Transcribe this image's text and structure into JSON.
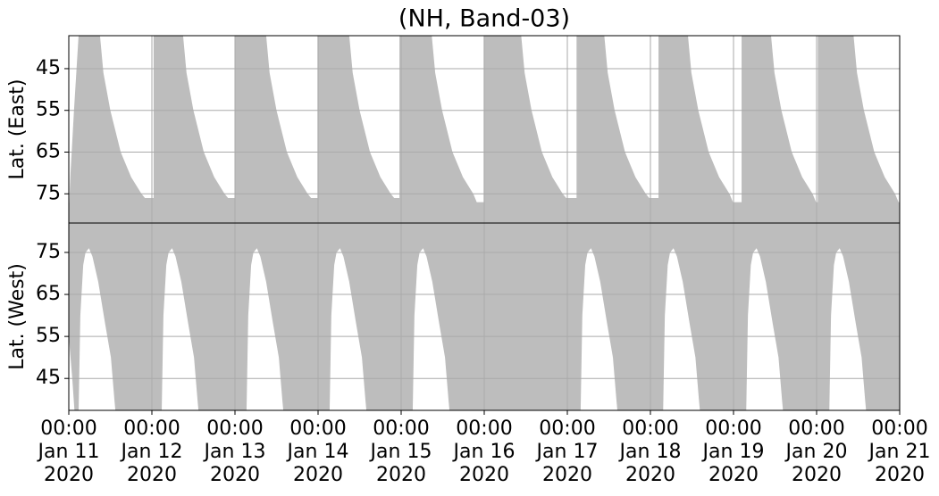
{
  "chart_data": [
    {
      "type": "area",
      "title": "(NH, Band-03)",
      "ylabel": "Lat. (East)",
      "xlim": [
        "2020-01-11 00:00",
        "2020-01-21 00:00"
      ],
      "ylim": [
        82,
        37.1
      ],
      "yticks": [
        45,
        55,
        65,
        75
      ],
      "grid": true,
      "series": [
        {
          "color": "#bdbdbd",
          "x": [
            "2020-01-11 00:00",
            "2020-01-11 00:30",
            "2020-01-11 01:30",
            "2020-01-11 02:50",
            "2020-01-11 09:00",
            "2020-01-11 10:00",
            "2020-01-11 12:00",
            "2020-01-11 15:00",
            "2020-01-11 18:00",
            "2020-01-11 21:00",
            "2020-01-11 22:00",
            "2020-01-12 00:30",
            "2020-01-12 00:30",
            "2020-01-12 09:00",
            "2020-01-12 10:00",
            "2020-01-12 12:00",
            "2020-01-12 15:00",
            "2020-01-12 18:00",
            "2020-01-12 21:00",
            "2020-01-12 22:00",
            "2020-01-13 00:00",
            "2020-01-13 00:00",
            "2020-01-13 09:00",
            "2020-01-13 10:00",
            "2020-01-13 12:00",
            "2020-01-13 15:00",
            "2020-01-13 18:00",
            "2020-01-13 21:00",
            "2020-01-13 22:00",
            "2020-01-13 23:50",
            "2020-01-13 23:50",
            "2020-01-14 09:00",
            "2020-01-14 10:00",
            "2020-01-14 12:00",
            "2020-01-14 15:00",
            "2020-01-14 18:00",
            "2020-01-14 21:00",
            "2020-01-14 22:00",
            "2020-01-14 23:30",
            "2020-01-14 23:30",
            "2020-01-15 08:50",
            "2020-01-15 09:50",
            "2020-01-15 11:50",
            "2020-01-15 14:50",
            "2020-01-15 17:50",
            "2020-01-15 20:50",
            "2020-01-15 21:50",
            "2020-01-15 23:50",
            "2020-01-15 23:50",
            "2020-01-16 10:40",
            "2020-01-16 11:40",
            "2020-01-16 13:40",
            "2020-01-16 16:40",
            "2020-01-16 19:40",
            "2020-01-16 22:40",
            "2020-01-16 23:40",
            "2020-01-17 02:40",
            "2020-01-17 02:40",
            "2020-01-17 10:40",
            "2020-01-17 11:40",
            "2020-01-17 13:40",
            "2020-01-17 16:40",
            "2020-01-17 19:40",
            "2020-01-17 22:40",
            "2020-01-17 23:40",
            "2020-01-18 02:20",
            "2020-01-18 02:20",
            "2020-01-18 10:50",
            "2020-01-18 11:50",
            "2020-01-18 13:50",
            "2020-01-18 16:50",
            "2020-01-18 19:50",
            "2020-01-18 22:50",
            "2020-01-18 23:50",
            "2020-01-19 02:20",
            "2020-01-19 02:20",
            "2020-01-19 10:50",
            "2020-01-19 11:50",
            "2020-01-19 13:50",
            "2020-01-19 16:50",
            "2020-01-19 19:50",
            "2020-01-19 22:50",
            "2020-01-19 23:50",
            "2020-01-20 00:20",
            "2020-01-20 00:20",
            "2020-01-20 10:40",
            "2020-01-20 11:40",
            "2020-01-20 13:40",
            "2020-01-20 16:40",
            "2020-01-20 19:40",
            "2020-01-20 22:40",
            "2020-01-20 23:40",
            "2020-01-21 00:00"
          ],
          "values": [
            80,
            70,
            55,
            37,
            37,
            46,
            55,
            65,
            71,
            75,
            76,
            76,
            37,
            37,
            46,
            55,
            65,
            71,
            75,
            76,
            76,
            37,
            37,
            46,
            55,
            65,
            71,
            75,
            76,
            76,
            37,
            37,
            46,
            55,
            65,
            71,
            75,
            76,
            76,
            37,
            37,
            46,
            55,
            65,
            71,
            75,
            77,
            77,
            37,
            37,
            46,
            55,
            65,
            71,
            75,
            76,
            76,
            37,
            37,
            46,
            55,
            65,
            71,
            75,
            76,
            76,
            37,
            37,
            46,
            55,
            65,
            71,
            75,
            77,
            77,
            37,
            37,
            46,
            55,
            65,
            71,
            75,
            77,
            77,
            37,
            37,
            46,
            55,
            65,
            71,
            75,
            77,
            77
          ]
        }
      ]
    },
    {
      "type": "area",
      "ylabel": "Lat. (West)",
      "xlim": [
        "2020-01-11 00:00",
        "2020-01-21 00:00"
      ],
      "xticks": [
        {
          "value": "2020-01-11 00:00",
          "label": "00:00\nJan 11\n2020"
        },
        {
          "value": "2020-01-12 00:00",
          "label": "00:00\nJan 12\n2020"
        },
        {
          "value": "2020-01-13 00:00",
          "label": "00:00\nJan 13\n2020"
        },
        {
          "value": "2020-01-14 00:00",
          "label": "00:00\nJan 14\n2020"
        },
        {
          "value": "2020-01-15 00:00",
          "label": "00:00\nJan 15\n2020"
        },
        {
          "value": "2020-01-16 00:00",
          "label": "00:00\nJan 16\n2020"
        },
        {
          "value": "2020-01-17 00:00",
          "label": "00:00\nJan 17\n2020"
        },
        {
          "value": "2020-01-18 00:00",
          "label": "00:00\nJan 18\n2020"
        },
        {
          "value": "2020-01-19 00:00",
          "label": "00:00\nJan 19\n2020"
        },
        {
          "value": "2020-01-20 00:00",
          "label": "00:00\nJan 20\n2020"
        },
        {
          "value": "2020-01-21 00:00",
          "label": "00:00\nJan 21\n2020"
        }
      ],
      "ylim": [
        37.4,
        82
      ],
      "yticks": [
        45,
        55,
        65,
        75
      ],
      "grid": true,
      "series": [
        {
          "color": "#bdbdbd",
          "x": [
            "2020-01-11 00:00",
            "2020-01-11 01:00",
            "2020-01-11 01:40",
            "2020-01-11 02:50",
            "2020-01-11 03:20",
            "2020-01-11 04:10",
            "2020-01-11 04:50",
            "2020-01-11 05:50",
            "2020-01-11 06:50",
            "2020-01-11 08:30",
            "2020-01-11 10:30",
            "2020-01-11 12:10",
            "2020-01-11 13:10",
            "2020-01-11 13:30",
            "2020-01-12 02:50",
            "2020-01-12 03:20",
            "2020-01-12 04:10",
            "2020-01-12 04:50",
            "2020-01-12 05:50",
            "2020-01-12 06:50",
            "2020-01-12 08:30",
            "2020-01-12 10:30",
            "2020-01-12 12:10",
            "2020-01-12 13:10",
            "2020-01-12 13:30",
            "2020-01-13 03:20",
            "2020-01-13 03:50",
            "2020-01-13 04:40",
            "2020-01-13 05:20",
            "2020-01-13 06:20",
            "2020-01-13 07:20",
            "2020-01-13 09:00",
            "2020-01-13 11:00",
            "2020-01-13 12:40",
            "2020-01-13 13:40",
            "2020-01-13 14:00",
            "2020-01-14 03:20",
            "2020-01-14 03:50",
            "2020-01-14 04:40",
            "2020-01-14 05:20",
            "2020-01-14 06:20",
            "2020-01-14 07:20",
            "2020-01-14 09:00",
            "2020-01-14 11:00",
            "2020-01-14 12:40",
            "2020-01-14 13:40",
            "2020-01-14 14:00",
            "2020-01-15 03:20",
            "2020-01-15 03:50",
            "2020-01-15 04:40",
            "2020-01-15 05:20",
            "2020-01-15 06:20",
            "2020-01-15 07:20",
            "2020-01-15 09:00",
            "2020-01-15 11:00",
            "2020-01-15 12:40",
            "2020-01-15 13:40",
            "2020-01-15 14:00",
            "2020-01-17 03:50",
            "2020-01-17 04:20",
            "2020-01-17 05:10",
            "2020-01-17 05:50",
            "2020-01-17 06:50",
            "2020-01-17 07:50",
            "2020-01-17 09:30",
            "2020-01-17 11:30",
            "2020-01-17 13:10",
            "2020-01-17 14:10",
            "2020-01-17 14:30",
            "2020-01-18 03:40",
            "2020-01-18 04:10",
            "2020-01-18 05:00",
            "2020-01-18 05:40",
            "2020-01-18 06:40",
            "2020-01-18 07:40",
            "2020-01-18 09:20",
            "2020-01-18 11:20",
            "2020-01-18 13:00",
            "2020-01-18 14:00",
            "2020-01-18 14:20",
            "2020-01-19 03:40",
            "2020-01-19 04:10",
            "2020-01-19 05:00",
            "2020-01-19 05:40",
            "2020-01-19 06:40",
            "2020-01-19 07:40",
            "2020-01-19 09:20",
            "2020-01-19 11:20",
            "2020-01-19 13:00",
            "2020-01-19 14:00",
            "2020-01-19 14:20",
            "2020-01-20 03:40",
            "2020-01-20 04:10",
            "2020-01-20 05:00",
            "2020-01-20 05:40",
            "2020-01-20 06:40",
            "2020-01-20 07:40",
            "2020-01-20 09:20",
            "2020-01-20 11:20",
            "2020-01-20 13:00",
            "2020-01-20 14:00",
            "2020-01-20 14:20",
            "2020-01-21 00:00"
          ],
          "values": [
            55,
            45,
            37,
            37,
            60,
            72,
            75,
            76,
            74,
            68,
            58,
            50,
            40,
            37,
            37,
            60,
            72,
            75,
            76,
            74,
            68,
            58,
            50,
            40,
            37,
            37,
            60,
            72,
            75,
            76,
            74,
            68,
            58,
            50,
            40,
            37,
            37,
            60,
            72,
            75,
            76,
            74,
            68,
            58,
            50,
            40,
            37,
            37,
            60,
            72,
            75,
            76,
            74,
            68,
            58,
            50,
            40,
            37,
            37,
            60,
            72,
            75,
            76,
            74,
            68,
            58,
            50,
            40,
            37,
            37,
            60,
            72,
            75,
            76,
            74,
            68,
            58,
            50,
            40,
            37,
            37,
            60,
            72,
            75,
            76,
            74,
            68,
            58,
            50,
            40,
            37,
            37,
            60,
            72,
            75,
            76,
            74,
            68,
            58,
            50,
            40,
            37,
            37
          ]
        }
      ]
    }
  ]
}
